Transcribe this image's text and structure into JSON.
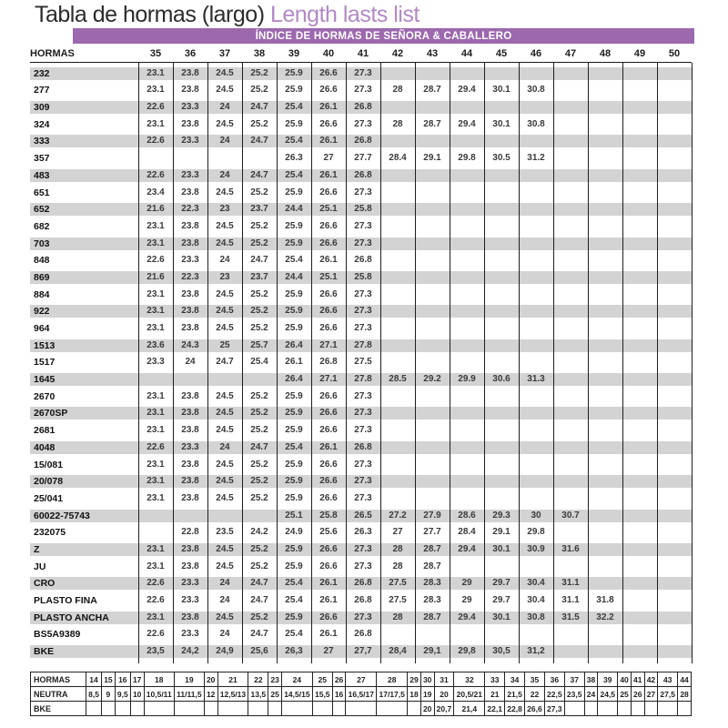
{
  "title": {
    "es": "Tabla de hormas (largo) ",
    "en": "Length lasts list"
  },
  "banner": "ÍNDICE DE HORMAS DE SEÑORA & CABALLERO",
  "colors": {
    "banner_purple": "#9c68ae",
    "title_accent_purple": "#b388c6",
    "row_shade_grey": "#d3d3d4",
    "grid_line": "#1f1f1f"
  },
  "main_table": {
    "label_header": "HORMAS",
    "size_headers": [
      "35",
      "36",
      "37",
      "38",
      "39",
      "40",
      "41",
      "42",
      "43",
      "44",
      "45",
      "46",
      "47",
      "48",
      "49",
      "50"
    ],
    "rows": [
      {
        "label": "232",
        "values": [
          "23.1",
          "23.8",
          "24.5",
          "25.2",
          "25.9",
          "26.6",
          "27.3",
          "",
          "",
          "",
          "",
          "",
          "",
          "",
          "",
          ""
        ]
      },
      {
        "label": "277",
        "values": [
          "23.1",
          "23.8",
          "24.5",
          "25.2",
          "25.9",
          "26.6",
          "27.3",
          "28",
          "28.7",
          "29.4",
          "30.1",
          "30.8",
          "",
          "",
          "",
          ""
        ]
      },
      {
        "label": "309",
        "values": [
          "22.6",
          "23.3",
          "24",
          "24.7",
          "25.4",
          "26.1",
          "26.8",
          "",
          "",
          "",
          "",
          "",
          "",
          "",
          "",
          ""
        ]
      },
      {
        "label": "324",
        "values": [
          "23.1",
          "23.8",
          "24.5",
          "25.2",
          "25.9",
          "26.6",
          "27.3",
          "28",
          "28.7",
          "29.4",
          "30.1",
          "30.8",
          "",
          "",
          "",
          ""
        ]
      },
      {
        "label": "333",
        "values": [
          "22.6",
          "23.3",
          "24",
          "24.7",
          "25.4",
          "26.1",
          "26.8",
          "",
          "",
          "",
          "",
          "",
          "",
          "",
          "",
          ""
        ]
      },
      {
        "label": "357",
        "values": [
          "",
          "",
          "",
          "",
          "26.3",
          "27",
          "27.7",
          "28.4",
          "29.1",
          "29.8",
          "30.5",
          "31.2",
          "",
          "",
          "",
          ""
        ]
      },
      {
        "label": "483",
        "values": [
          "22.6",
          "23.3",
          "24",
          "24.7",
          "25.4",
          "26.1",
          "26.8",
          "",
          "",
          "",
          "",
          "",
          "",
          "",
          "",
          ""
        ]
      },
      {
        "label": "651",
        "values": [
          "23.4",
          "23.8",
          "24.5",
          "25.2",
          "25.9",
          "26.6",
          "27.3",
          "",
          "",
          "",
          "",
          "",
          "",
          "",
          "",
          ""
        ]
      },
      {
        "label": "652",
        "values": [
          "21.6",
          "22.3",
          "23",
          "23.7",
          "24.4",
          "25.1",
          "25.8",
          "",
          "",
          "",
          "",
          "",
          "",
          "",
          "",
          ""
        ]
      },
      {
        "label": "682",
        "values": [
          "23.1",
          "23.8",
          "24.5",
          "25.2",
          "25.9",
          "26.6",
          "27.3",
          "",
          "",
          "",
          "",
          "",
          "",
          "",
          "",
          ""
        ]
      },
      {
        "label": "703",
        "values": [
          "23.1",
          "23.8",
          "24.5",
          "25.2",
          "25.9",
          "26.6",
          "27.3",
          "",
          "",
          "",
          "",
          "",
          "",
          "",
          "",
          ""
        ]
      },
      {
        "label": "848",
        "values": [
          "22.6",
          "23.3",
          "24",
          "24.7",
          "25.4",
          "26.1",
          "26.8",
          "",
          "",
          "",
          "",
          "",
          "",
          "",
          "",
          ""
        ]
      },
      {
        "label": "869",
        "values": [
          "21.6",
          "22.3",
          "23",
          "23.7",
          "24.4",
          "25.1",
          "25.8",
          "",
          "",
          "",
          "",
          "",
          "",
          "",
          "",
          ""
        ]
      },
      {
        "label": "884",
        "values": [
          "23.1",
          "23.8",
          "24.5",
          "25.2",
          "25.9",
          "26.6",
          "27.3",
          "",
          "",
          "",
          "",
          "",
          "",
          "",
          "",
          ""
        ]
      },
      {
        "label": "922",
        "values": [
          "23.1",
          "23.8",
          "24.5",
          "25.2",
          "25.9",
          "26.6",
          "27.3",
          "",
          "",
          "",
          "",
          "",
          "",
          "",
          "",
          ""
        ]
      },
      {
        "label": "964",
        "values": [
          "23.1",
          "23.8",
          "24.5",
          "25.2",
          "25.9",
          "26.6",
          "27.3",
          "",
          "",
          "",
          "",
          "",
          "",
          "",
          "",
          ""
        ]
      },
      {
        "label": "1513",
        "values": [
          "23.6",
          "24.3",
          "25",
          "25.7",
          "26.4",
          "27.1",
          "27.8",
          "",
          "",
          "",
          "",
          "",
          "",
          "",
          "",
          ""
        ]
      },
      {
        "label": "1517",
        "values": [
          "23.3",
          "24",
          "24.7",
          "25.4",
          "26.1",
          "26.8",
          "27.5",
          "",
          "",
          "",
          "",
          "",
          "",
          "",
          "",
          ""
        ]
      },
      {
        "label": "1645",
        "values": [
          "",
          "",
          "",
          "",
          "26.4",
          "27.1",
          "27.8",
          "28.5",
          "29.2",
          "29.9",
          "30.6",
          "31.3",
          "",
          "",
          "",
          ""
        ]
      },
      {
        "label": "2670",
        "values": [
          "23.1",
          "23.8",
          "24.5",
          "25.2",
          "25.9",
          "26.6",
          "27.3",
          "",
          "",
          "",
          "",
          "",
          "",
          "",
          "",
          ""
        ]
      },
      {
        "label": "2670SP",
        "values": [
          "23.1",
          "23.8",
          "24.5",
          "25.2",
          "25.9",
          "26.6",
          "27.3",
          "",
          "",
          "",
          "",
          "",
          "",
          "",
          "",
          ""
        ]
      },
      {
        "label": "2681",
        "values": [
          "23.1",
          "23.8",
          "24.5",
          "25.2",
          "25.9",
          "26.6",
          "27.3",
          "",
          "",
          "",
          "",
          "",
          "",
          "",
          "",
          ""
        ]
      },
      {
        "label": "4048",
        "values": [
          "22.6",
          "23.3",
          "24",
          "24.7",
          "25.4",
          "26.1",
          "26.8",
          "",
          "",
          "",
          "",
          "",
          "",
          "",
          "",
          ""
        ]
      },
      {
        "label": "15/081",
        "values": [
          "23.1",
          "23.8",
          "24.5",
          "25.2",
          "25.9",
          "26.6",
          "27.3",
          "",
          "",
          "",
          "",
          "",
          "",
          "",
          "",
          ""
        ]
      },
      {
        "label": "20/078",
        "values": [
          "23.1",
          "23.8",
          "24.5",
          "25.2",
          "25.9",
          "26.6",
          "27.3",
          "",
          "",
          "",
          "",
          "",
          "",
          "",
          "",
          ""
        ]
      },
      {
        "label": "25/041",
        "values": [
          "23.1",
          "23.8",
          "24.5",
          "25.2",
          "25.9",
          "26.6",
          "27.3",
          "",
          "",
          "",
          "",
          "",
          "",
          "",
          "",
          ""
        ]
      },
      {
        "label": "60022-75743",
        "values": [
          "",
          "",
          "",
          "",
          "25.1",
          "25.8",
          "26.5",
          "27.2",
          "27.9",
          "28.6",
          "29.3",
          "30",
          "30.7",
          "",
          "",
          ""
        ]
      },
      {
        "label": "232075",
        "values": [
          "",
          "22.8",
          "23.5",
          "24.2",
          "24.9",
          "25.6",
          "26.3",
          "27",
          "27.7",
          "28.4",
          "29.1",
          "29.8",
          "",
          "",
          "",
          ""
        ]
      },
      {
        "label": "Z",
        "values": [
          "23.1",
          "23.8",
          "24.5",
          "25.2",
          "25.9",
          "26.6",
          "27.3",
          "28",
          "28.7",
          "29.4",
          "30.1",
          "30.9",
          "31.6",
          "",
          "",
          ""
        ]
      },
      {
        "label": "JU",
        "values": [
          "23.1",
          "23.8",
          "24.5",
          "25.2",
          "25.9",
          "26.6",
          "27.3",
          "28",
          "28.7",
          "",
          "",
          "",
          "",
          "",
          "",
          ""
        ]
      },
      {
        "label": "CRO",
        "values": [
          "22.6",
          "23.3",
          "24",
          "24.7",
          "25.4",
          "26.1",
          "26.8",
          "27.5",
          "28.3",
          "29",
          "29.7",
          "30.4",
          "31.1",
          "",
          "",
          ""
        ]
      },
      {
        "label": "PLASTO FINA",
        "values": [
          "22.6",
          "23.3",
          "24",
          "24.7",
          "25.4",
          "26.1",
          "26.8",
          "27.5",
          "28.3",
          "29",
          "29.7",
          "30.4",
          "31.1",
          "31.8",
          "",
          ""
        ]
      },
      {
        "label": "PLASTO ANCHA",
        "values": [
          "23.1",
          "23.8",
          "24.5",
          "25.2",
          "25.9",
          "26.6",
          "27.3",
          "28",
          "28.7",
          "29.4",
          "30.1",
          "30.8",
          "31.5",
          "32.2",
          "",
          ""
        ]
      },
      {
        "label": "BS5A9389",
        "values": [
          "22.6",
          "23.3",
          "24",
          "24.7",
          "25.4",
          "26.1",
          "26.8",
          "",
          "",
          "",
          "",
          "",
          "",
          "",
          "",
          ""
        ]
      },
      {
        "label": "BKE",
        "values": [
          "23,5",
          "24,2",
          "24,9",
          "25,6",
          "26,3",
          "27",
          "27,7",
          "28,4",
          "29,1",
          "29,8",
          "30,5",
          "31,2",
          "",
          "",
          "",
          ""
        ]
      }
    ]
  },
  "bottom_table": {
    "rows": [
      {
        "label": "HORMAS",
        "values": [
          "14",
          "15",
          "16",
          "17",
          "18",
          "19",
          "20",
          "21",
          "22",
          "23",
          "24",
          "25",
          "26",
          "27",
          "28",
          "29",
          "30",
          "31",
          "32",
          "33",
          "34",
          "35",
          "36",
          "37",
          "38",
          "39",
          "40",
          "41",
          "42",
          "43",
          "44"
        ]
      },
      {
        "label": "NEUTRA",
        "values": [
          "8,5",
          "9",
          "9,5",
          "10",
          "10,5/11",
          "11/11,5",
          "12",
          "12,5/13",
          "13,5",
          "25",
          "14,5/15",
          "15,5",
          "16",
          "16,5/17",
          "17/17,5",
          "18",
          "19",
          "20",
          "20,5/21",
          "21",
          "21,5",
          "22",
          "22,5",
          "23,5",
          "24",
          "24,5",
          "25",
          "26",
          "27",
          "27,5",
          "28"
        ]
      },
      {
        "label": "BKE",
        "values": [
          "",
          "",
          "",
          "",
          "",
          "",
          "",
          "",
          "",
          "",
          "",
          "",
          "",
          "",
          "",
          "",
          "20",
          "20,7",
          "21,4",
          "22,1",
          "22,8",
          "26,6",
          "27,3",
          "",
          "",
          "",
          "",
          "",
          "",
          "",
          ""
        ]
      }
    ]
  }
}
